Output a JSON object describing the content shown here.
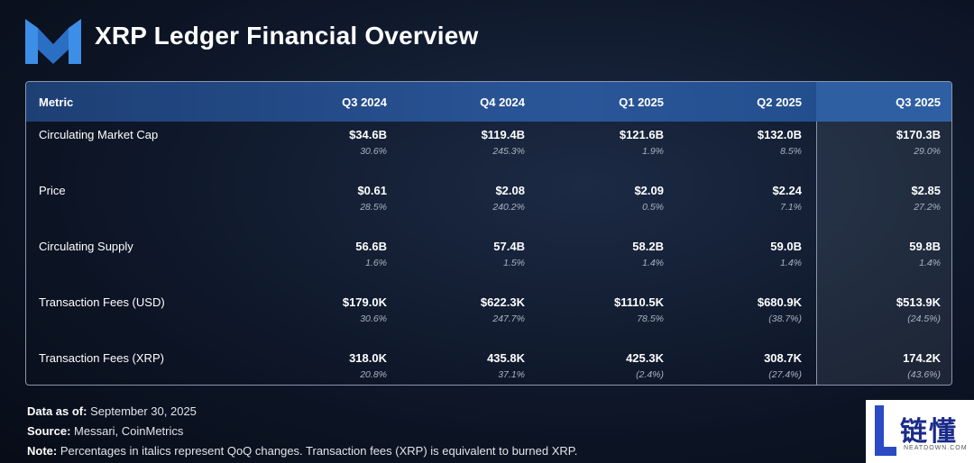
{
  "header": {
    "title": "XRP Ledger Financial Overview"
  },
  "table": {
    "headers": [
      "Metric",
      "Q3 2024",
      "Q4 2024",
      "Q1 2025",
      "Q2 2025",
      "Q3 2025"
    ],
    "rows": [
      {
        "metric": "Circulating Market Cap",
        "cells": [
          [
            "$34.6B",
            "30.6%"
          ],
          [
            "$119.4B",
            "245.3%"
          ],
          [
            "$121.6B",
            "1.9%"
          ],
          [
            "$132.0B",
            "8.5%"
          ],
          [
            "$170.3B",
            "29.0%"
          ]
        ]
      },
      {
        "metric": "Price",
        "cells": [
          [
            "$0.61",
            "28.5%"
          ],
          [
            "$2.08",
            "240.2%"
          ],
          [
            "$2.09",
            "0.5%"
          ],
          [
            "$2.24",
            "7.1%"
          ],
          [
            "$2.85",
            "27.2%"
          ]
        ]
      },
      {
        "metric": "Circulating Supply",
        "cells": [
          [
            "56.6B",
            "1.6%"
          ],
          [
            "57.4B",
            "1.5%"
          ],
          [
            "58.2B",
            "1.4%"
          ],
          [
            "59.0B",
            "1.4%"
          ],
          [
            "59.8B",
            "1.4%"
          ]
        ]
      },
      {
        "metric": "Transaction Fees (USD)",
        "cells": [
          [
            "$179.0K",
            "30.6%"
          ],
          [
            "$622.3K",
            "247.7%"
          ],
          [
            "$1110.5K",
            "78.5%"
          ],
          [
            "$680.9K",
            "(38.7%)"
          ],
          [
            "$513.9K",
            "(24.5%)"
          ]
        ]
      },
      {
        "metric": "Transaction Fees (XRP)",
        "cells": [
          [
            "318.0K",
            "20.8%"
          ],
          [
            "435.8K",
            "37.1%"
          ],
          [
            "425.3K",
            "(2.4%)"
          ],
          [
            "308.7K",
            "(27.4%)"
          ],
          [
            "174.2K",
            "(43.6%)"
          ]
        ]
      }
    ]
  },
  "footer": [
    {
      "label": "Data as of:",
      "text": "September 30, 2025"
    },
    {
      "label": "Source:",
      "text": "Messari, CoinMetrics"
    },
    {
      "label": "Note:",
      "text": "Percentages in italics represent QoQ changes. Transaction fees (XRP) is equivalent to burned XRP."
    }
  ],
  "watermark": {
    "name": "链懂",
    "url": "NEATDOWN.COM"
  }
}
